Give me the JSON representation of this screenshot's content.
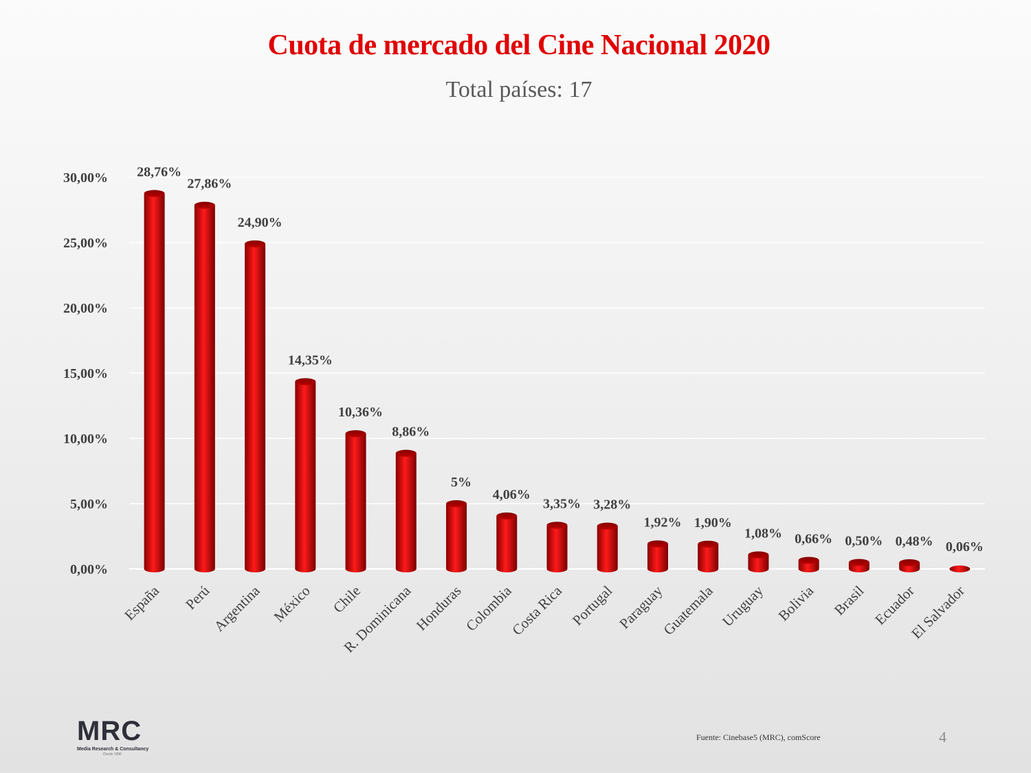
{
  "title": "Cuota de mercado del Cine Nacional 2020",
  "subtitle": "Total países: 17",
  "chart_data": {
    "type": "bar",
    "categories": [
      "España",
      "Perú",
      "Argentina",
      "México",
      "Chile",
      "R. Dominicana",
      "Honduras",
      "Colombia",
      "Costa Rica",
      "Portugal",
      "Paraguay",
      "Guatemala",
      "Uruguay",
      "Bolivia",
      "Brasil",
      "Ecuador",
      "El Salvador"
    ],
    "values": [
      28.76,
      27.86,
      24.9,
      14.35,
      10.36,
      8.86,
      5,
      4.06,
      3.35,
      3.28,
      1.92,
      1.9,
      1.08,
      0.66,
      0.5,
      0.48,
      0.06
    ],
    "data_labels": [
      "28,76%",
      "27,86%",
      "24,90%",
      "14,35%",
      "10,36%",
      "8,86%",
      "5%",
      "4,06%",
      "3,35%",
      "3,28%",
      "1,92%",
      "1,90%",
      "1,08%",
      "0,66%",
      "0,50%",
      "0,48%",
      "0,06%"
    ],
    "yticks": [
      "0,00%",
      "5,00%",
      "10,00%",
      "15,00%",
      "20,00%",
      "25,00%",
      "30,00%"
    ],
    "ylim": [
      0,
      30
    ],
    "grid": true,
    "bar_color": "#e00000"
  },
  "footer": {
    "logo_text": "MRC",
    "logo_subtitle": "Media Research & Consultancy",
    "logo_since": "Desde 1996",
    "source": "Fuente: Cinebase5 (MRC), comScore",
    "page_number": "4"
  }
}
